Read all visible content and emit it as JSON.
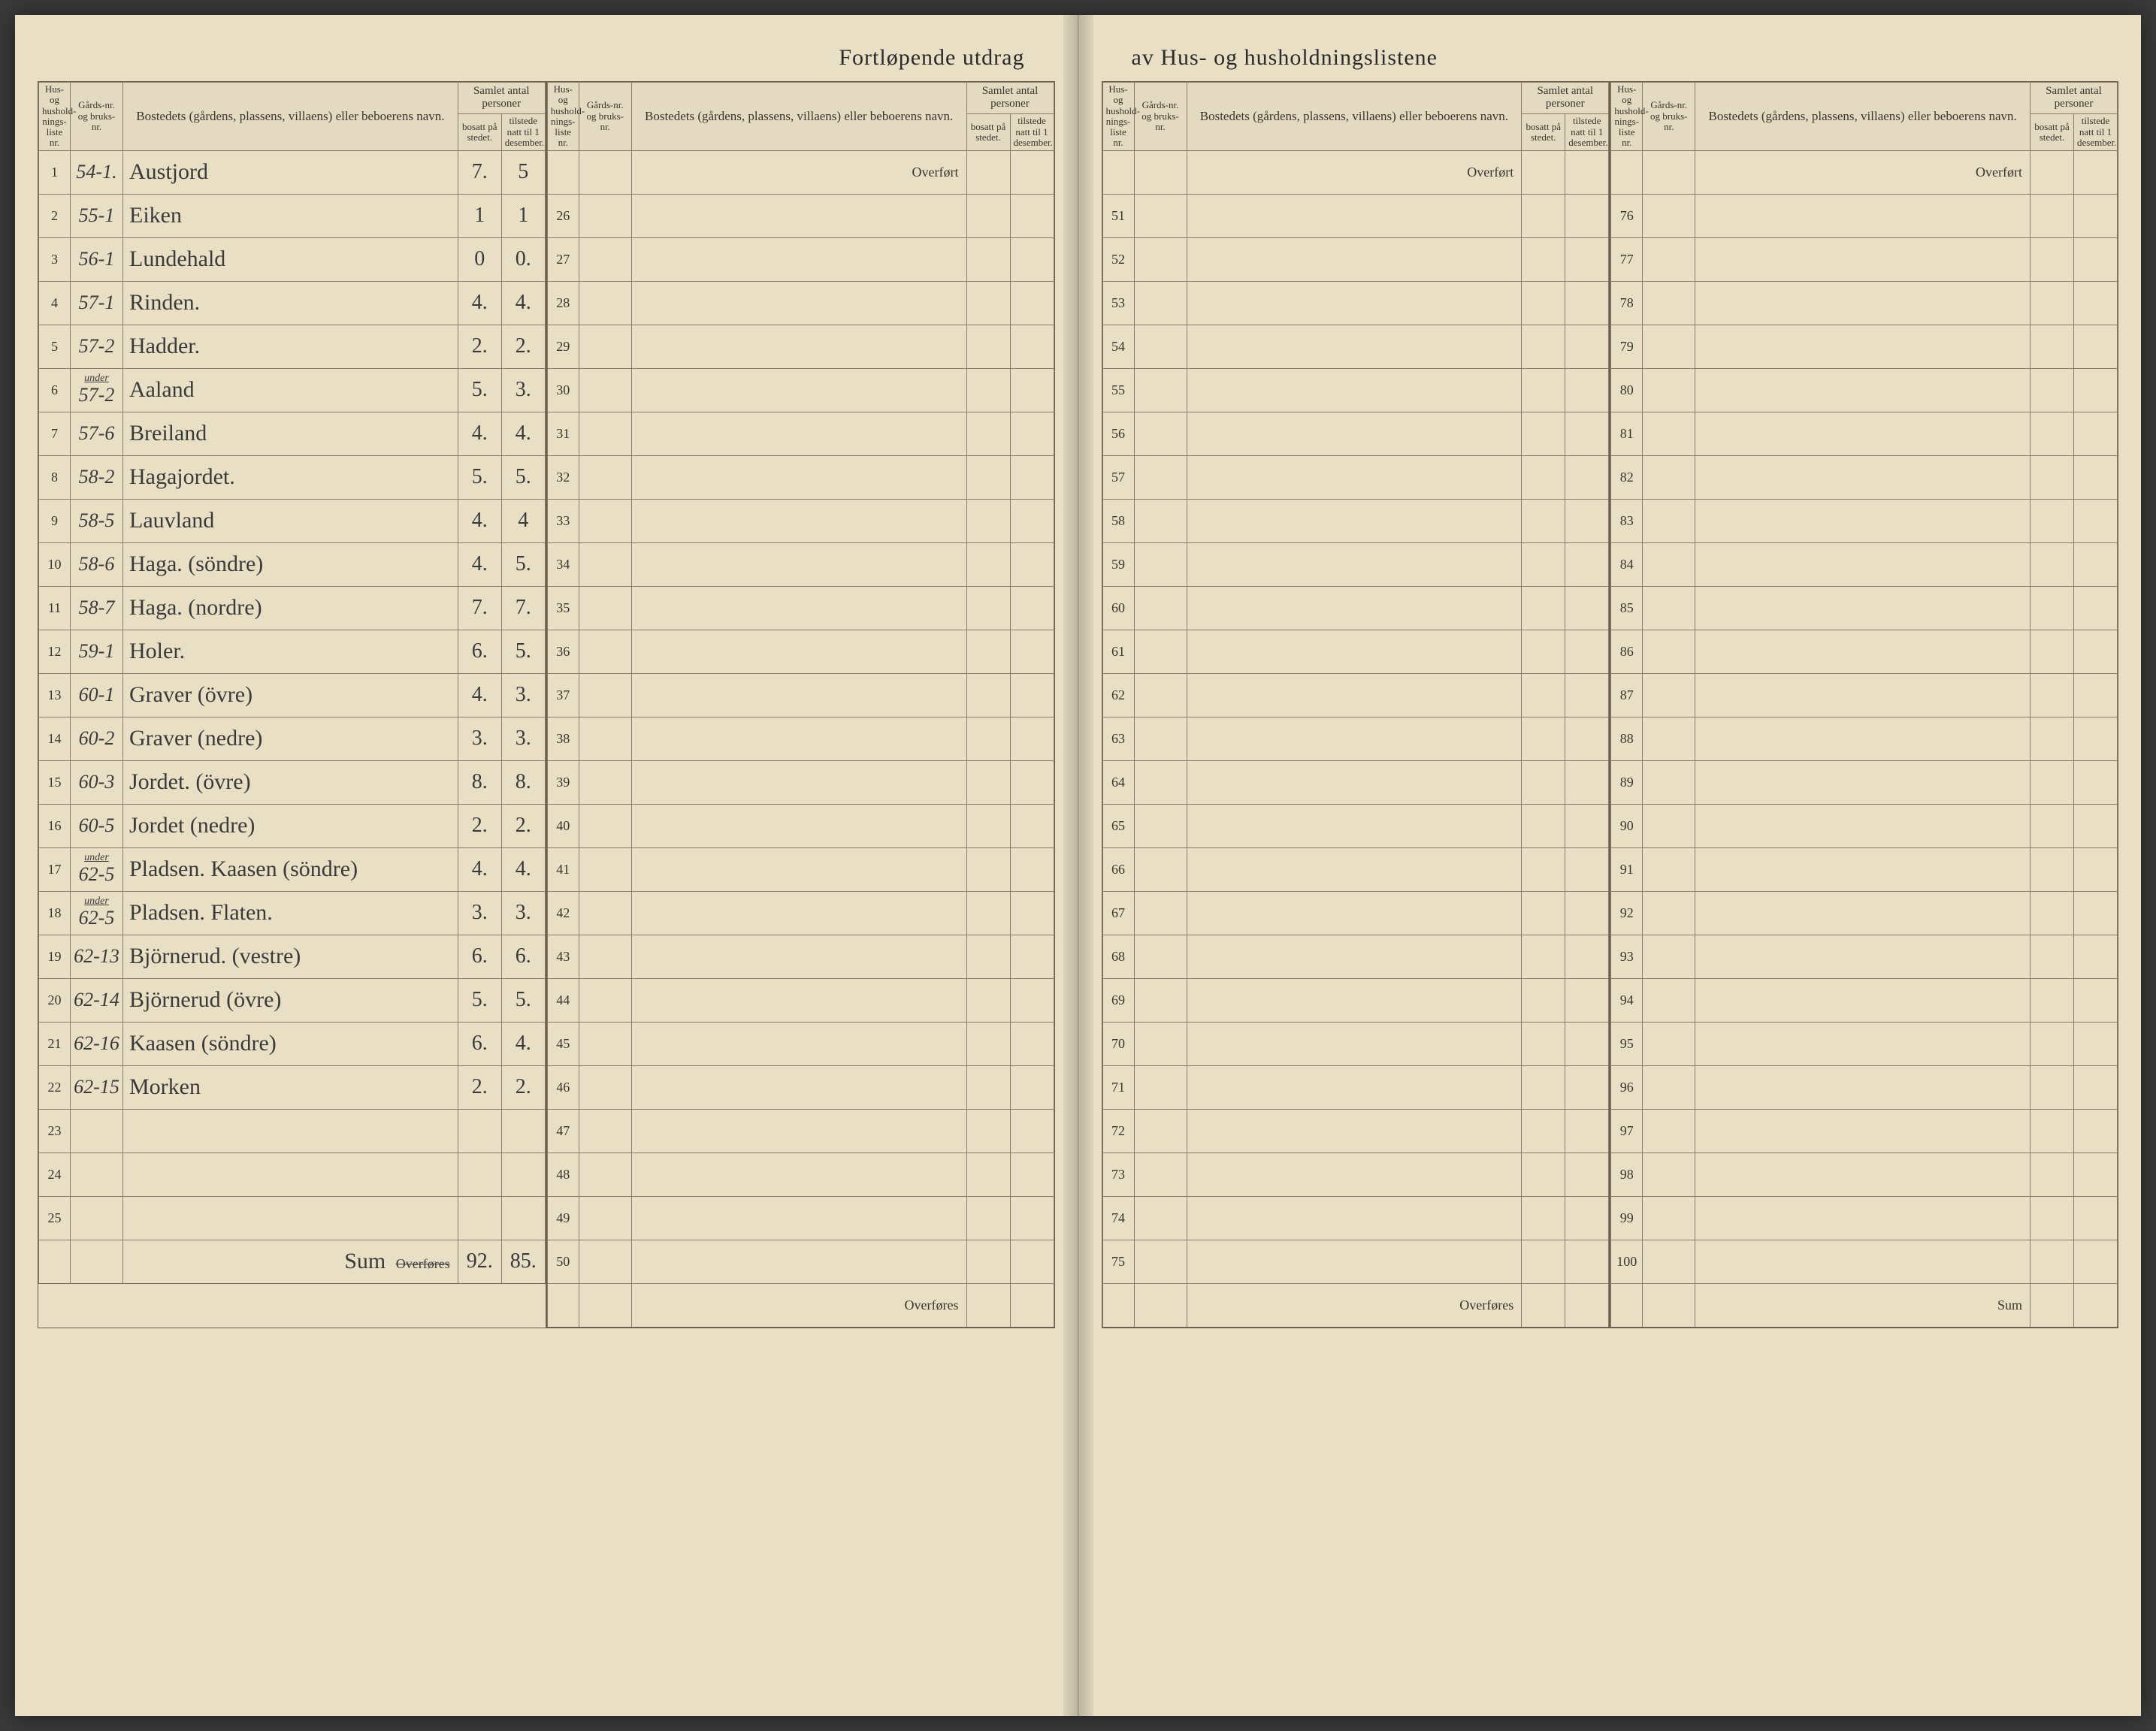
{
  "title_left": "Fortløpende utdrag",
  "title_right": "av Hus- og husholdningslistene",
  "header": {
    "liste": "Hus- og hushold-nings-liste nr.",
    "gard": "Gårds-nr. og bruks-nr.",
    "bosted": "Bostedets (gårdens, plassens, villaens) eller beboerens navn.",
    "samlet": "Samlet antal personer",
    "bosatt": "bosatt på stedet.",
    "tilstede": "tilstede natt til 1 desember."
  },
  "labels": {
    "overfort": "Overført",
    "overfores": "Overføres",
    "sum": "Sum",
    "sum_hand_label": "Sum"
  },
  "rows": [
    {
      "n": "1",
      "g": "54-1.",
      "navn": "Austjord",
      "b": "7.",
      "t": "5"
    },
    {
      "n": "2",
      "g": "55-1",
      "navn": "Eiken",
      "b": "1",
      "t": "1"
    },
    {
      "n": "3",
      "g": "56-1",
      "navn": "Lundehald",
      "b": "0",
      "t": "0."
    },
    {
      "n": "4",
      "g": "57-1",
      "navn": "Rinden.",
      "b": "4.",
      "t": "4."
    },
    {
      "n": "5",
      "g": "57-2",
      "navn": "Hadder.",
      "b": "2.",
      "t": "2."
    },
    {
      "n": "6",
      "g": "57-2",
      "g_pre": "under",
      "navn": "Aaland",
      "b": "5.",
      "t": "3."
    },
    {
      "n": "7",
      "g": "57-6",
      "navn": "Breiland",
      "b": "4.",
      "t": "4."
    },
    {
      "n": "8",
      "g": "58-2",
      "navn": "Hagajordet.",
      "b": "5.",
      "t": "5."
    },
    {
      "n": "9",
      "g": "58-5",
      "navn": "Lauvland",
      "b": "4.",
      "t": "4"
    },
    {
      "n": "10",
      "g": "58-6",
      "navn": "Haga. (söndre)",
      "b": "4.",
      "t": "5."
    },
    {
      "n": "11",
      "g": "58-7",
      "navn": "Haga. (nordre)",
      "b": "7.",
      "t": "7."
    },
    {
      "n": "12",
      "g": "59-1",
      "navn": "Holer.",
      "b": "6.",
      "t": "5."
    },
    {
      "n": "13",
      "g": "60-1",
      "navn": "Graver (övre)",
      "b": "4.",
      "t": "3."
    },
    {
      "n": "14",
      "g": "60-2",
      "navn": "Graver (nedre)",
      "b": "3.",
      "t": "3."
    },
    {
      "n": "15",
      "g": "60-3",
      "navn": "Jordet. (övre)",
      "b": "8.",
      "t": "8."
    },
    {
      "n": "16",
      "g": "60-5",
      "navn": "Jordet (nedre)",
      "b": "2.",
      "t": "2."
    },
    {
      "n": "17",
      "g": "62-5",
      "g_pre": "under",
      "navn": "Pladsen. Kaasen (söndre)",
      "b": "4.",
      "t": "4."
    },
    {
      "n": "18",
      "g": "62-5",
      "g_pre": "under",
      "navn": "Pladsen. Flaten.",
      "b": "3.",
      "t": "3."
    },
    {
      "n": "19",
      "g": "62-13",
      "navn": "Björnerud. (vestre)",
      "b": "6.",
      "t": "6."
    },
    {
      "n": "20",
      "g": "62-14",
      "navn": "Björnerud (övre)",
      "b": "5.",
      "t": "5."
    },
    {
      "n": "21",
      "g": "62-16",
      "navn": "Kaasen (söndre)",
      "b": "6.",
      "t": "4."
    },
    {
      "n": "22",
      "g": "62-15",
      "navn": "Morken",
      "b": "2.",
      "t": "2."
    },
    {
      "n": "23",
      "g": "",
      "navn": "",
      "b": "",
      "t": ""
    },
    {
      "n": "24",
      "g": "",
      "navn": "",
      "b": "",
      "t": ""
    },
    {
      "n": "25",
      "g": "",
      "navn": "",
      "b": "",
      "t": ""
    }
  ],
  "sum_bosatt": "92.",
  "sum_tilstede": "85.",
  "blank_ranges": [
    {
      "start": 26,
      "end": 50
    },
    {
      "start": 51,
      "end": 75
    },
    {
      "start": 76,
      "end": 100
    }
  ]
}
